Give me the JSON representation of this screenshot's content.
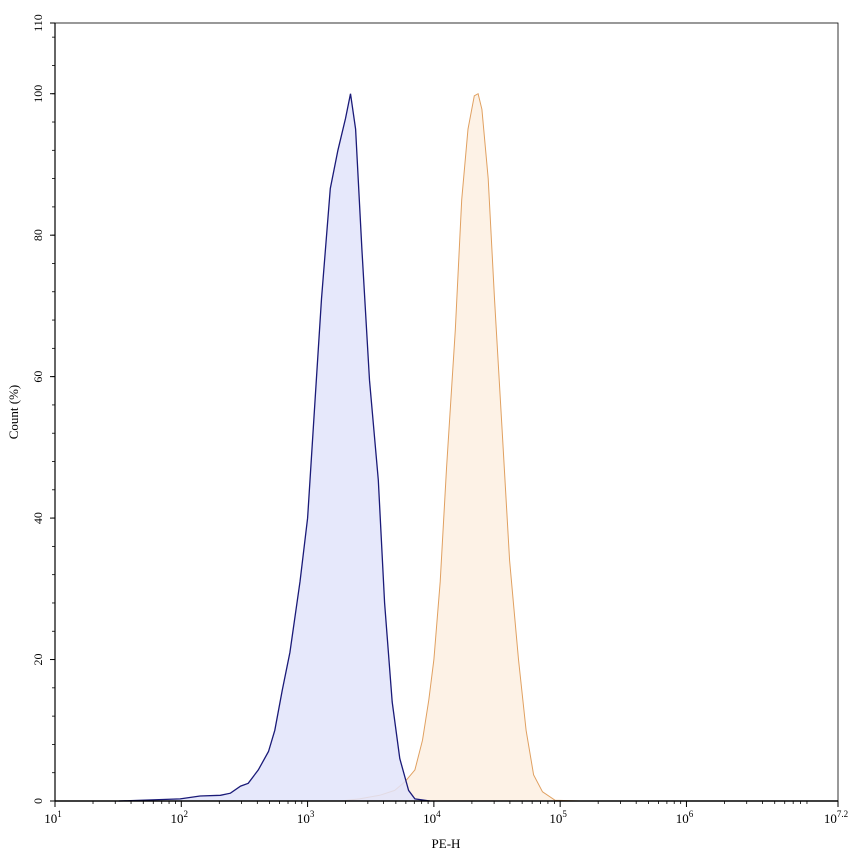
{
  "chart_data": {
    "type": "area",
    "title": "",
    "xlabel": "PE-H",
    "ylabel": "Count (%)",
    "xscale": "log",
    "xlim_log10": [
      1,
      7.2
    ],
    "ylim": [
      0,
      110
    ],
    "x_ticks": [
      {
        "base": "10",
        "exp": "1"
      },
      {
        "base": "10",
        "exp": "2"
      },
      {
        "base": "10",
        "exp": "3"
      },
      {
        "base": "10",
        "exp": "4"
      },
      {
        "base": "10",
        "exp": "5"
      },
      {
        "base": "10",
        "exp": "6"
      },
      {
        "base": "10",
        "exp": "7.2"
      }
    ],
    "y_ticks": [
      "0",
      "20",
      "40",
      "60",
      "80",
      "100",
      "110"
    ],
    "grid": false,
    "legend": "none",
    "series": [
      {
        "color": "#e0a060",
        "fill": "#fdf2e6",
        "x": [
          1820,
          2570,
          3715,
          4898,
          5888,
          7079,
          8128,
          9120,
          10000,
          11220,
          12589,
          14791,
          16596,
          18621,
          20893,
          22387,
          23988,
          26915,
          30200,
          34674,
          39811,
          46774,
          53703,
          61660,
          72444,
          91201,
          144544
        ],
        "y": [
          0,
          0.3,
          0.8,
          1.5,
          2.7,
          4.4,
          8.6,
          14.3,
          20,
          31,
          47,
          66.6,
          85,
          95,
          99.7,
          100,
          97.8,
          88,
          71,
          52.5,
          34,
          20,
          10,
          3.7,
          1.3,
          0.1,
          0
        ]
      },
      {
        "color": "#1a1a78",
        "fill": "#e2e4fa",
        "x": [
          32,
          98,
          141,
          204,
          245,
          295,
          339,
          407,
          490,
          550,
          631,
          724,
          871,
          1000,
          1148,
          1288,
          1514,
          1738,
          1995,
          2188,
          2399,
          2692,
          3090,
          3631,
          4074,
          4677,
          5370,
          6310,
          7079,
          9333
        ],
        "y": [
          0,
          0.3,
          0.7,
          0.8,
          1.1,
          2.1,
          2.5,
          4.4,
          7,
          10,
          15.7,
          21,
          31,
          40,
          57,
          71,
          86.6,
          92,
          96.5,
          100,
          95,
          78,
          59.5,
          45.4,
          28,
          14,
          6,
          1.5,
          0.3,
          0
        ]
      }
    ]
  }
}
